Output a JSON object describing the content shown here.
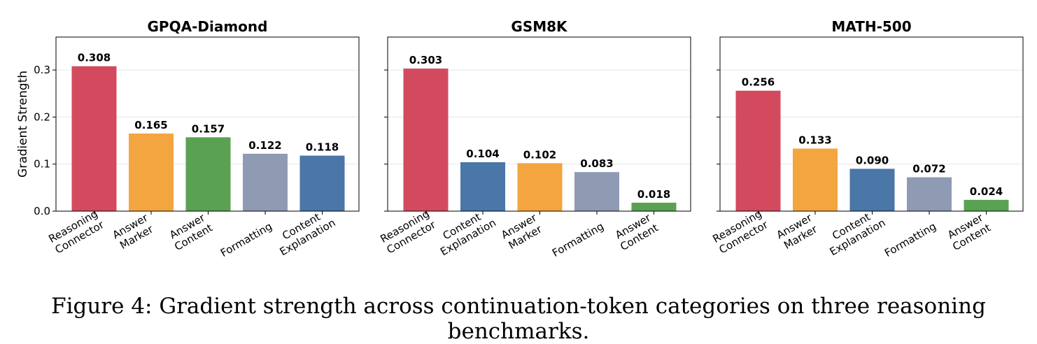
{
  "chart_data": [
    {
      "type": "bar",
      "title": "GPQA-Diamond",
      "ylabel": "Gradient Strength",
      "ylim": [
        0,
        0.37
      ],
      "yticks": [
        "0.0",
        "0.1",
        "0.2",
        "0.3"
      ],
      "grid": true,
      "categories": [
        [
          "Reasoning",
          "Connector"
        ],
        [
          "Answer",
          "Marker"
        ],
        [
          "Answer",
          "Content"
        ],
        [
          "Formatting"
        ],
        [
          "Content",
          "Explanation"
        ]
      ],
      "values": [
        0.308,
        0.165,
        0.157,
        0.122,
        0.118
      ],
      "labels": [
        "0.308",
        "0.165",
        "0.157",
        "0.122",
        "0.118"
      ],
      "colors": [
        "#d34a5e",
        "#f3a540",
        "#5aa252",
        "#8f9bb3",
        "#4a76a8"
      ]
    },
    {
      "type": "bar",
      "title": "GSM8K",
      "ylabel": "",
      "ylim": [
        0,
        0.37
      ],
      "yticks": [
        "",
        "",
        "",
        ""
      ],
      "grid": true,
      "categories": [
        [
          "Reasoning",
          "Connector"
        ],
        [
          "Content",
          "Explanation"
        ],
        [
          "Answer",
          "Marker"
        ],
        [
          "Formatting"
        ],
        [
          "Answer",
          "Content"
        ]
      ],
      "values": [
        0.303,
        0.104,
        0.102,
        0.083,
        0.018
      ],
      "labels": [
        "0.303",
        "0.104",
        "0.102",
        "0.083",
        "0.018"
      ],
      "colors": [
        "#d34a5e",
        "#4a76a8",
        "#f3a540",
        "#8f9bb3",
        "#5aa252"
      ]
    },
    {
      "type": "bar",
      "title": "MATH-500",
      "ylabel": "",
      "ylim": [
        0,
        0.37
      ],
      "yticks": [
        "",
        "",
        "",
        ""
      ],
      "grid": true,
      "categories": [
        [
          "Reasoning",
          "Connector"
        ],
        [
          "Answer",
          "Marker"
        ],
        [
          "Content",
          "Explanation"
        ],
        [
          "Formatting"
        ],
        [
          "Answer",
          "Content"
        ]
      ],
      "values": [
        0.256,
        0.133,
        0.09,
        0.072,
        0.024
      ],
      "labels": [
        "0.256",
        "0.133",
        "0.090",
        "0.072",
        "0.024"
      ],
      "colors": [
        "#d34a5e",
        "#f3a540",
        "#4a76a8",
        "#8f9bb3",
        "#5aa252"
      ]
    }
  ],
  "caption": "Figure 4: Gradient strength across continuation-token categories on three reasoning benchmarks."
}
